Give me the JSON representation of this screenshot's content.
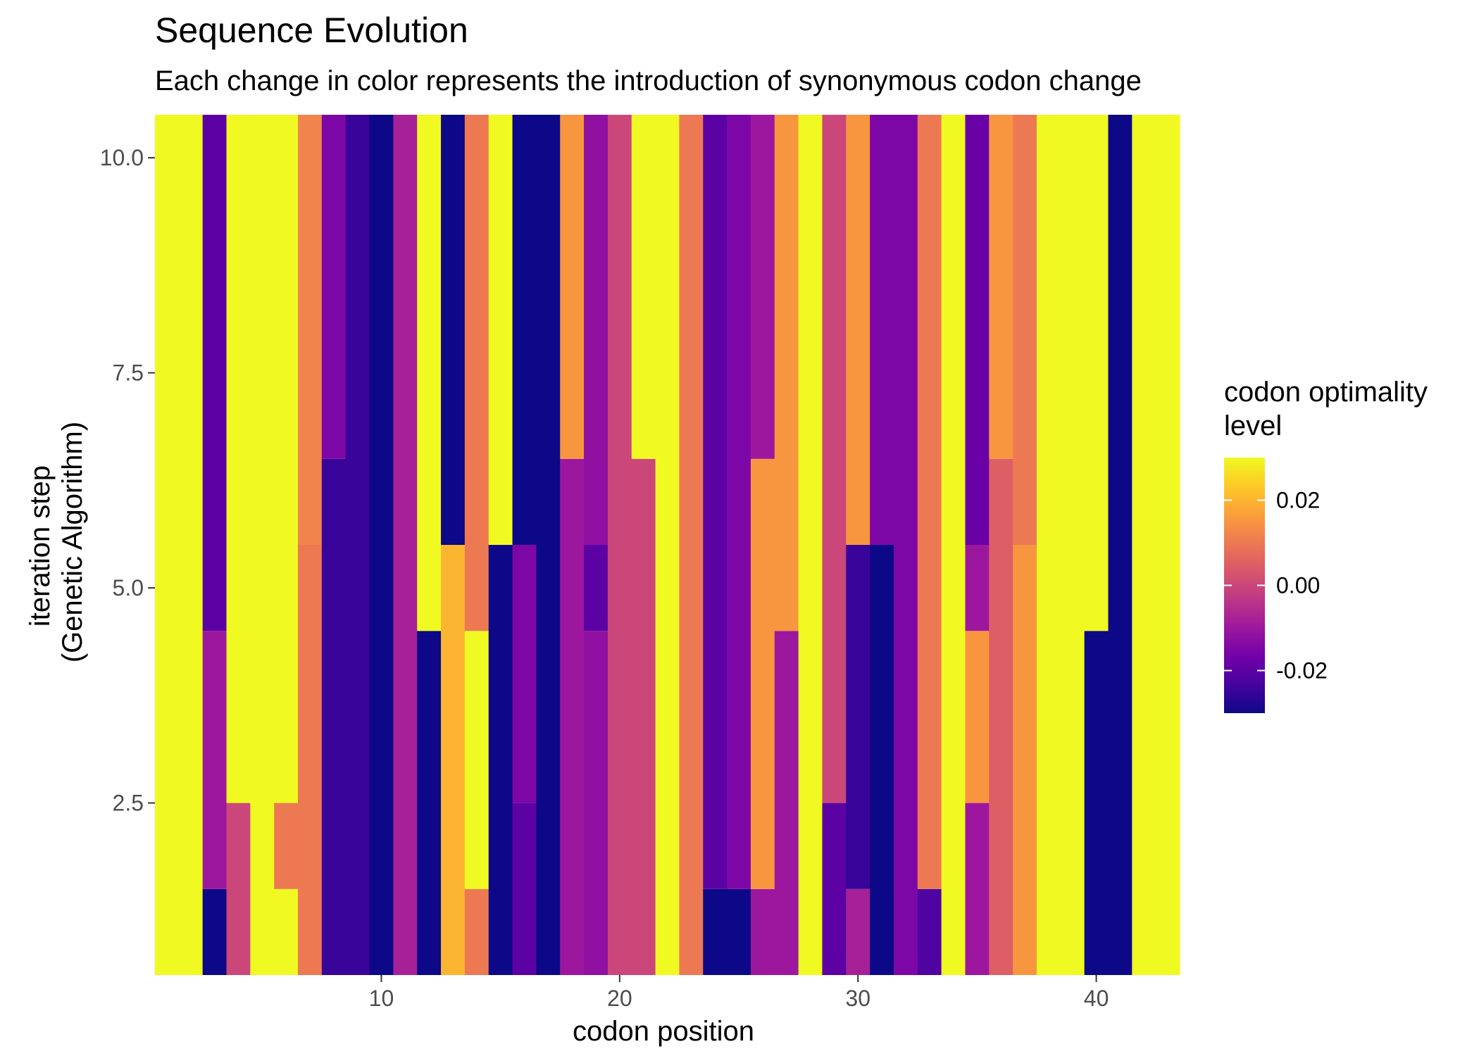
{
  "chart_data": {
    "type": "heatmap",
    "title": "Sequence Evolution",
    "subtitle": "Each change in color represents the introduction of synonymous codon change",
    "xlabel": "codon position",
    "ylabel_lines": [
      "iteration step",
      "(Genetic Algorithm)"
    ],
    "xlim": [
      0.5,
      43.5
    ],
    "ylim": [
      0.5,
      10.5
    ],
    "x_ticks": [
      10,
      20,
      30,
      40
    ],
    "x_tick_labels": [
      "10",
      "20",
      "30",
      "40"
    ],
    "y_ticks": [
      2.5,
      5.0,
      7.5,
      10.0
    ],
    "y_tick_labels": [
      "2.5",
      "5.0",
      "7.5",
      "10.0"
    ],
    "color_scale": {
      "name": "plasma",
      "limits": [
        -0.03,
        0.03
      ],
      "colors": [
        "#0d0887",
        "#46039f",
        "#7201a8",
        "#9c179e",
        "#bd3786",
        "#d8576b",
        "#ed7953",
        "#fb9f3a",
        "#fdca26",
        "#f0f921"
      ]
    },
    "legend": {
      "title_lines": [
        "codon optimality",
        "level"
      ],
      "ticks": [
        0.02,
        0.0,
        -0.02
      ],
      "tick_labels": [
        "0.02",
        "0.00",
        "-0.02"
      ],
      "placement": "right"
    },
    "x": [
      1,
      2,
      3,
      4,
      5,
      6,
      7,
      8,
      9,
      10,
      11,
      12,
      13,
      14,
      15,
      16,
      17,
      18,
      19,
      20,
      21,
      22,
      23,
      24,
      25,
      26,
      27,
      28,
      29,
      30,
      31,
      32,
      33,
      34,
      35,
      36,
      37,
      38,
      39,
      40,
      41,
      42,
      43
    ],
    "columns": [
      [
        {
          "from": 1,
          "to": 10,
          "value": 0.03
        }
      ],
      [
        {
          "from": 1,
          "to": 10,
          "value": 0.03
        }
      ],
      [
        {
          "from": 1,
          "to": 1,
          "value": -0.03
        },
        {
          "from": 2,
          "to": 4,
          "value": -0.01
        },
        {
          "from": 5,
          "to": 10,
          "value": -0.02
        }
      ],
      [
        {
          "from": 1,
          "to": 2,
          "value": 0.0
        },
        {
          "from": 3,
          "to": 10,
          "value": 0.03
        }
      ],
      [
        {
          "from": 1,
          "to": 10,
          "value": 0.03
        }
      ],
      [
        {
          "from": 1,
          "to": 1,
          "value": 0.03
        },
        {
          "from": 2,
          "to": 2,
          "value": 0.01
        },
        {
          "from": 3,
          "to": 10,
          "value": 0.03
        }
      ],
      [
        {
          "from": 1,
          "to": 5,
          "value": 0.01
        },
        {
          "from": 6,
          "to": 10,
          "value": 0.012
        }
      ],
      [
        {
          "from": 1,
          "to": 6,
          "value": -0.025
        },
        {
          "from": 7,
          "to": 10,
          "value": -0.015
        }
      ],
      [
        {
          "from": 1,
          "to": 10,
          "value": -0.025
        }
      ],
      [
        {
          "from": 1,
          "to": 10,
          "value": -0.03
        }
      ],
      [
        {
          "from": 1,
          "to": 10,
          "value": -0.008
        }
      ],
      [
        {
          "from": 1,
          "to": 4,
          "value": -0.03
        },
        {
          "from": 5,
          "to": 10,
          "value": 0.03
        }
      ],
      [
        {
          "from": 1,
          "to": 5,
          "value": 0.02
        },
        {
          "from": 6,
          "to": 10,
          "value": -0.03
        }
      ],
      [
        {
          "from": 1,
          "to": 1,
          "value": 0.01
        },
        {
          "from": 2,
          "to": 4,
          "value": 0.03
        },
        {
          "from": 5,
          "to": 10,
          "value": 0.01
        }
      ],
      [
        {
          "from": 1,
          "to": 5,
          "value": -0.03
        },
        {
          "from": 6,
          "to": 10,
          "value": 0.03
        }
      ],
      [
        {
          "from": 1,
          "to": 2,
          "value": -0.02
        },
        {
          "from": 3,
          "to": 5,
          "value": -0.015
        },
        {
          "from": 6,
          "to": 10,
          "value": -0.03
        }
      ],
      [
        {
          "from": 1,
          "to": 10,
          "value": -0.03
        }
      ],
      [
        {
          "from": 1,
          "to": 6,
          "value": -0.01
        },
        {
          "from": 7,
          "to": 10,
          "value": 0.015
        }
      ],
      [
        {
          "from": 1,
          "to": 4,
          "value": -0.012
        },
        {
          "from": 5,
          "to": 5,
          "value": -0.02
        },
        {
          "from": 6,
          "to": 10,
          "value": -0.012
        }
      ],
      [
        {
          "from": 1,
          "to": 10,
          "value": 0.0
        }
      ],
      [
        {
          "from": 1,
          "to": 6,
          "value": 0.0
        },
        {
          "from": 7,
          "to": 10,
          "value": 0.03
        }
      ],
      [
        {
          "from": 1,
          "to": 10,
          "value": 0.03
        }
      ],
      [
        {
          "from": 1,
          "to": 10,
          "value": 0.01
        }
      ],
      [
        {
          "from": 1,
          "to": 1,
          "value": -0.03
        },
        {
          "from": 2,
          "to": 10,
          "value": -0.02
        }
      ],
      [
        {
          "from": 1,
          "to": 1,
          "value": -0.03
        },
        {
          "from": 2,
          "to": 10,
          "value": -0.015
        }
      ],
      [
        {
          "from": 1,
          "to": 1,
          "value": -0.01
        },
        {
          "from": 2,
          "to": 6,
          "value": 0.015
        },
        {
          "from": 7,
          "to": 10,
          "value": -0.01
        }
      ],
      [
        {
          "from": 1,
          "to": 4,
          "value": -0.01
        },
        {
          "from": 5,
          "to": 10,
          "value": 0.015
        }
      ],
      [
        {
          "from": 1,
          "to": 10,
          "value": 0.03
        }
      ],
      [
        {
          "from": 1,
          "to": 2,
          "value": -0.02
        },
        {
          "from": 3,
          "to": 10,
          "value": 0.0
        }
      ],
      [
        {
          "from": 1,
          "to": 1,
          "value": -0.008
        },
        {
          "from": 2,
          "to": 5,
          "value": -0.025
        },
        {
          "from": 6,
          "to": 10,
          "value": 0.015
        }
      ],
      [
        {
          "from": 1,
          "to": 5,
          "value": -0.03
        },
        {
          "from": 6,
          "to": 10,
          "value": -0.015
        }
      ],
      [
        {
          "from": 1,
          "to": 10,
          "value": -0.015
        }
      ],
      [
        {
          "from": 1,
          "to": 1,
          "value": -0.022
        },
        {
          "from": 2,
          "to": 10,
          "value": 0.01
        }
      ],
      [
        {
          "from": 1,
          "to": 10,
          "value": 0.03
        }
      ],
      [
        {
          "from": 1,
          "to": 2,
          "value": -0.01
        },
        {
          "from": 3,
          "to": 4,
          "value": 0.015
        },
        {
          "from": 5,
          "to": 5,
          "value": -0.01
        },
        {
          "from": 6,
          "to": 10,
          "value": -0.018
        }
      ],
      [
        {
          "from": 1,
          "to": 6,
          "value": 0.005
        },
        {
          "from": 7,
          "to": 10,
          "value": 0.015
        }
      ],
      [
        {
          "from": 1,
          "to": 5,
          "value": 0.015
        },
        {
          "from": 6,
          "to": 10,
          "value": 0.01
        }
      ],
      [
        {
          "from": 1,
          "to": 10,
          "value": 0.03
        }
      ],
      [
        {
          "from": 1,
          "to": 10,
          "value": 0.03
        }
      ],
      [
        {
          "from": 1,
          "to": 4,
          "value": -0.03
        },
        {
          "from": 5,
          "to": 10,
          "value": 0.03
        }
      ],
      [
        {
          "from": 1,
          "to": 10,
          "value": -0.03
        }
      ],
      [
        {
          "from": 1,
          "to": 10,
          "value": 0.03
        }
      ],
      [
        {
          "from": 1,
          "to": 10,
          "value": 0.03
        }
      ]
    ]
  }
}
